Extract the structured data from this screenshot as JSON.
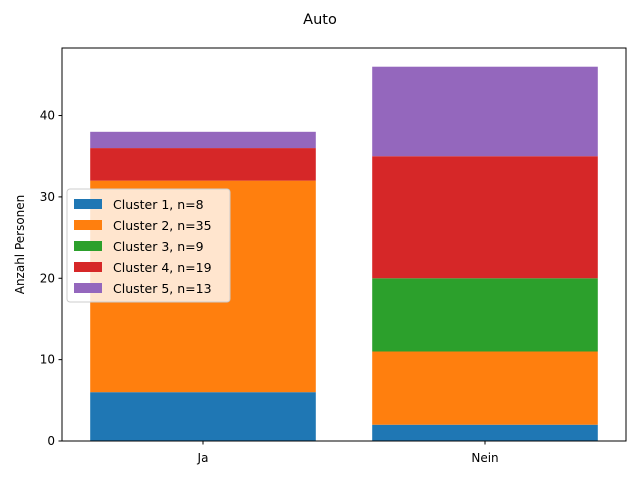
{
  "chart_data": {
    "type": "bar",
    "stacked": true,
    "title": "Auto",
    "xlabel": "",
    "ylabel": "Anzahl Personen",
    "categories": [
      "Ja",
      "Nein"
    ],
    "ylim": [
      0,
      48.3
    ],
    "yticks": [
      0,
      10,
      20,
      30,
      40
    ],
    "legend_position": "center-left",
    "series": [
      {
        "name": "Cluster 1, n=8",
        "color": "#1f77b4",
        "values": [
          6,
          2
        ]
      },
      {
        "name": "Cluster 2, n=35",
        "color": "#ff7f0e",
        "values": [
          26,
          9
        ]
      },
      {
        "name": "Cluster 3, n=9",
        "color": "#2ca02c",
        "values": [
          0,
          9
        ]
      },
      {
        "name": "Cluster 4, n=19",
        "color": "#d62728",
        "values": [
          4,
          15
        ]
      },
      {
        "name": "Cluster 5, n=13",
        "color": "#9467bd",
        "values": [
          2,
          11
        ]
      }
    ]
  }
}
